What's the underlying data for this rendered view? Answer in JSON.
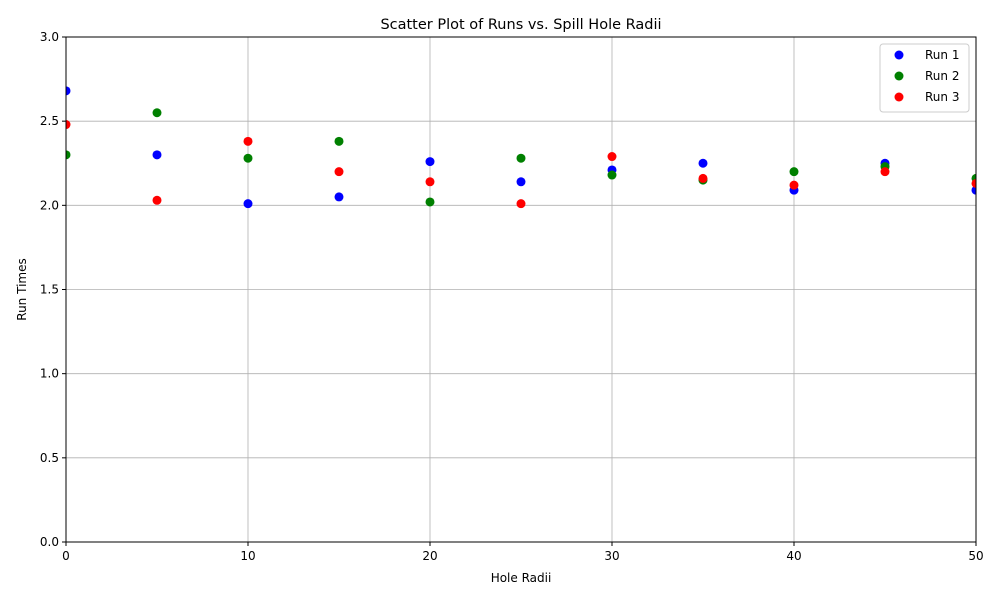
{
  "chart_data": {
    "type": "scatter",
    "title": "Scatter Plot of Runs vs. Spill Hole Radii",
    "xlabel": "Hole Radii",
    "ylabel": "Run Times",
    "xlim": [
      0,
      50
    ],
    "ylim": [
      0,
      3.0
    ],
    "xticks": [
      "0",
      "10",
      "20",
      "30",
      "40",
      "50"
    ],
    "yticks": [
      "0.0",
      "0.5",
      "1.0",
      "1.5",
      "2.0",
      "2.5",
      "3.0"
    ],
    "grid": true,
    "legend_position": "top-right",
    "x": [
      0,
      5,
      10,
      15,
      20,
      25,
      30,
      35,
      40,
      45,
      50
    ],
    "series": [
      {
        "name": "Run 1",
        "color": "#0000ff",
        "values": [
          2.68,
          2.3,
          2.01,
          2.05,
          2.26,
          2.14,
          2.21,
          2.25,
          2.09,
          2.25,
          2.09
        ]
      },
      {
        "name": "Run 2",
        "color": "#008000",
        "values": [
          2.3,
          2.55,
          2.28,
          2.38,
          2.02,
          2.28,
          2.18,
          2.15,
          2.2,
          2.23,
          2.16
        ]
      },
      {
        "name": "Run 3",
        "color": "#ff0000",
        "values": [
          2.48,
          2.03,
          2.38,
          2.2,
          2.14,
          2.01,
          2.29,
          2.16,
          2.12,
          2.2,
          2.13
        ]
      }
    ]
  }
}
